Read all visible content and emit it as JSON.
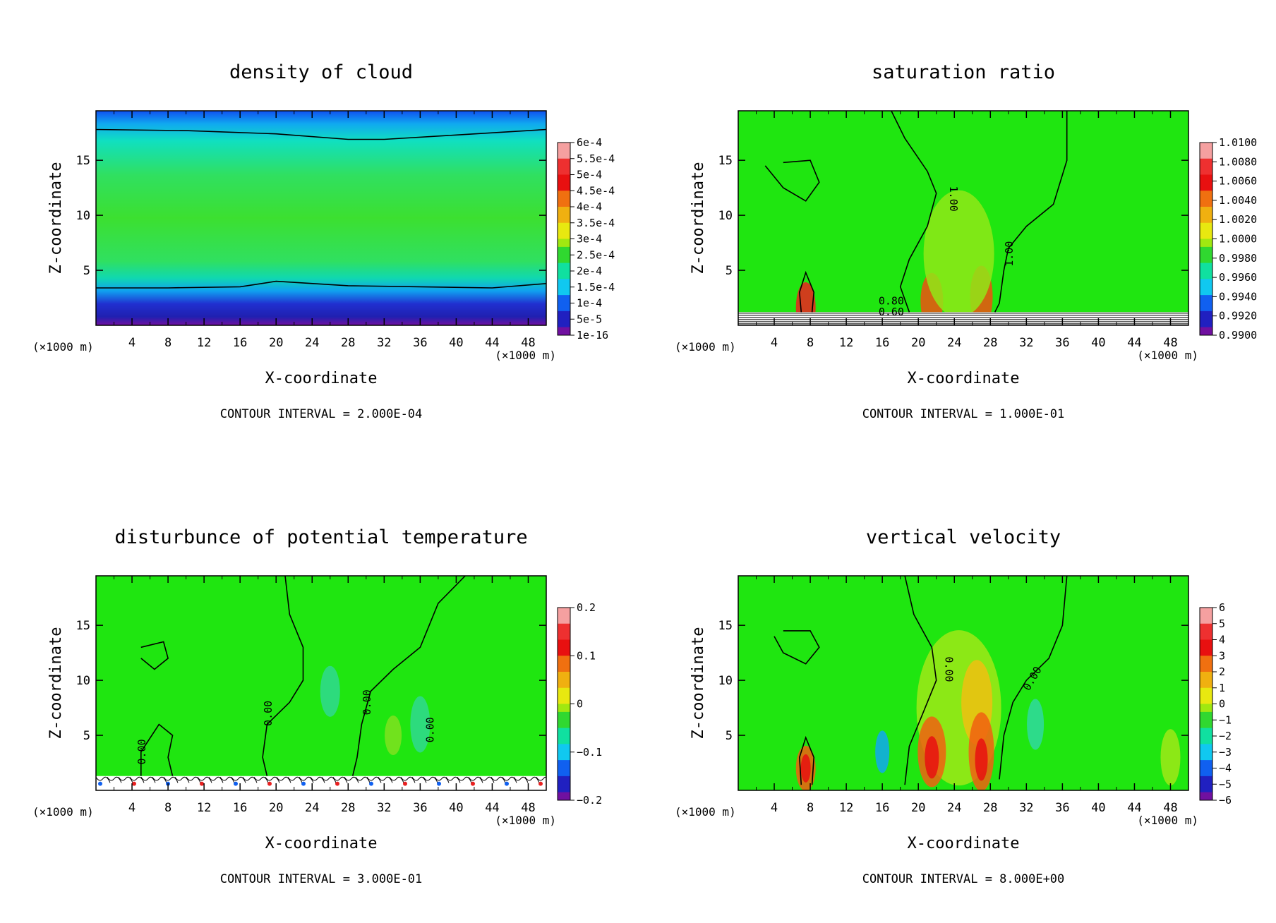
{
  "chart_data": [
    {
      "type": "heatmap",
      "title": "density of cloud",
      "xlabel": "X-coordinate",
      "ylabel": "Z-coordinate",
      "x_unit": "(×1000 m)",
      "x_ticks": [
        4,
        8,
        12,
        16,
        20,
        24,
        28,
        32,
        36,
        40,
        44,
        48
      ],
      "y_ticks": [
        5,
        10,
        15
      ],
      "xlim": [
        0,
        50
      ],
      "ylim": [
        0,
        19.5
      ],
      "colorbar_labels": [
        "6e-4",
        "5.5e-4",
        "5e-4",
        "4.5e-4",
        "4e-4",
        "3.5e-4",
        "3e-4",
        "2.5e-4",
        "2e-4",
        "1.5e-4",
        "1e-4",
        "5e-5",
        "1e-16"
      ],
      "contour_interval_text": "CONTOUR INTERVAL = 2.000E-04",
      "contour_labels": [],
      "background": "#3fe23a"
    },
    {
      "type": "heatmap",
      "title": "saturation ratio",
      "xlabel": "X-coordinate",
      "ylabel": "Z-coordinate",
      "x_unit": "(×1000 m)",
      "x_ticks": [
        4,
        8,
        12,
        16,
        20,
        24,
        28,
        32,
        36,
        40,
        44,
        48
      ],
      "y_ticks": [
        5,
        10,
        15
      ],
      "xlim": [
        0,
        50
      ],
      "ylim": [
        0,
        19.5
      ],
      "colorbar_labels": [
        "1.0100",
        "1.0080",
        "1.0060",
        "1.0040",
        "1.0020",
        "1.0000",
        "0.9980",
        "0.9960",
        "0.9940",
        "0.9920",
        "0.9900"
      ],
      "contour_interval_text": "CONTOUR INTERVAL = 1.000E-01",
      "contour_labels": [
        "1.00",
        "1.00",
        "0.80",
        "0.60"
      ],
      "background": "#1fe610"
    },
    {
      "type": "heatmap",
      "title": "disturbunce of potential temperature",
      "xlabel": "X-coordinate",
      "ylabel": "Z-coordinate",
      "x_unit": "(×1000 m)",
      "x_ticks": [
        4,
        8,
        12,
        16,
        20,
        24,
        28,
        32,
        36,
        40,
        44,
        48
      ],
      "y_ticks": [
        5,
        10,
        15
      ],
      "xlim": [
        0,
        50
      ],
      "ylim": [
        0,
        19.5
      ],
      "colorbar_labels": [
        "0.2",
        "0.1",
        "0",
        "−0.1",
        "−0.2"
      ],
      "contour_interval_text": "CONTOUR INTERVAL = 3.000E-01",
      "contour_labels": [
        "0.00",
        "0.00",
        "0.00",
        "0.00"
      ],
      "background": "#1fe610"
    },
    {
      "type": "heatmap",
      "title": "vertical velocity",
      "xlabel": "X-coordinate",
      "ylabel": "Z-coordinate",
      "x_unit": "(×1000 m)",
      "x_ticks": [
        4,
        8,
        12,
        16,
        20,
        24,
        28,
        32,
        36,
        40,
        44,
        48
      ],
      "y_ticks": [
        5,
        10,
        15
      ],
      "xlim": [
        0,
        50
      ],
      "ylim": [
        0,
        19.5
      ],
      "colorbar_labels": [
        "6",
        "5",
        "4",
        "3",
        "2",
        "1",
        "0",
        "−1",
        "−2",
        "−3",
        "−4",
        "−5",
        "−6"
      ],
      "contour_interval_text": "CONTOUR INTERVAL = 8.000E+00",
      "contour_labels": [
        "0.00",
        "0.00"
      ],
      "background": "#1fe610"
    }
  ],
  "colorbar_colors": [
    "#f5a0a0",
    "#ee3030",
    "#e81010",
    "#f07010",
    "#f0b010",
    "#e8e810",
    "#a0e810",
    "#30d830",
    "#10e0a0",
    "#10c8f0",
    "#1060f0",
    "#2020c0",
    "#7010a0"
  ]
}
